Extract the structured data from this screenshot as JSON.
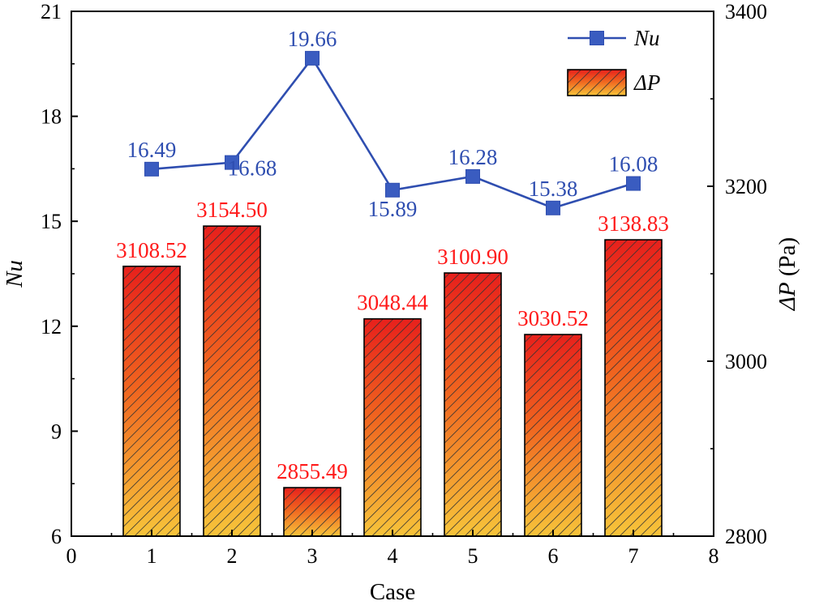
{
  "chart_data": {
    "type": "bar+line",
    "categories": [
      1,
      2,
      3,
      4,
      5,
      6,
      7
    ],
    "series": [
      {
        "name": "ΔP",
        "type": "bar",
        "axis": "right",
        "values": [
          3108.52,
          3154.5,
          2855.49,
          3048.44,
          3100.9,
          3030.52,
          3138.83
        ],
        "labels": [
          "3108.52",
          "3154.50",
          "2855.49",
          "3048.44",
          "3100.90",
          "3030.52",
          "3138.83"
        ]
      },
      {
        "name": "Nu",
        "type": "line",
        "axis": "left",
        "values": [
          16.49,
          16.68,
          19.66,
          15.89,
          16.28,
          15.38,
          16.08
        ],
        "labels": [
          "16.49",
          "16.68",
          "19.66",
          "15.89",
          "16.28",
          "15.38",
          "16.08"
        ]
      }
    ],
    "xlabel": "Case",
    "xlim": [
      0,
      8
    ],
    "xticks": [
      "0",
      "1",
      "2",
      "3",
      "4",
      "5",
      "6",
      "7",
      "8"
    ],
    "ylabel_left": "Nu",
    "ylim_left": [
      6,
      21
    ],
    "yticks_left": [
      "6",
      "9",
      "12",
      "15",
      "18",
      "21"
    ],
    "ylabel_right_symbol": "ΔP",
    "ylabel_right_unit": "(Pa)",
    "ylim_right": [
      2800,
      3400
    ],
    "yticks_right": [
      "2800",
      "3000",
      "3200",
      "3400"
    ],
    "legend": {
      "position": "top-right",
      "entries": [
        "Nu",
        "ΔP"
      ]
    },
    "colors": {
      "line": "#2f4eb0",
      "marker": "#3a5cc0",
      "nu_label": "#2f4eb0",
      "bar_label": "#ff1a1a",
      "bar_top": "#e8201c",
      "bar_bottom": "#f7c43a",
      "hatch": "#333333",
      "axis": "#000000"
    }
  }
}
